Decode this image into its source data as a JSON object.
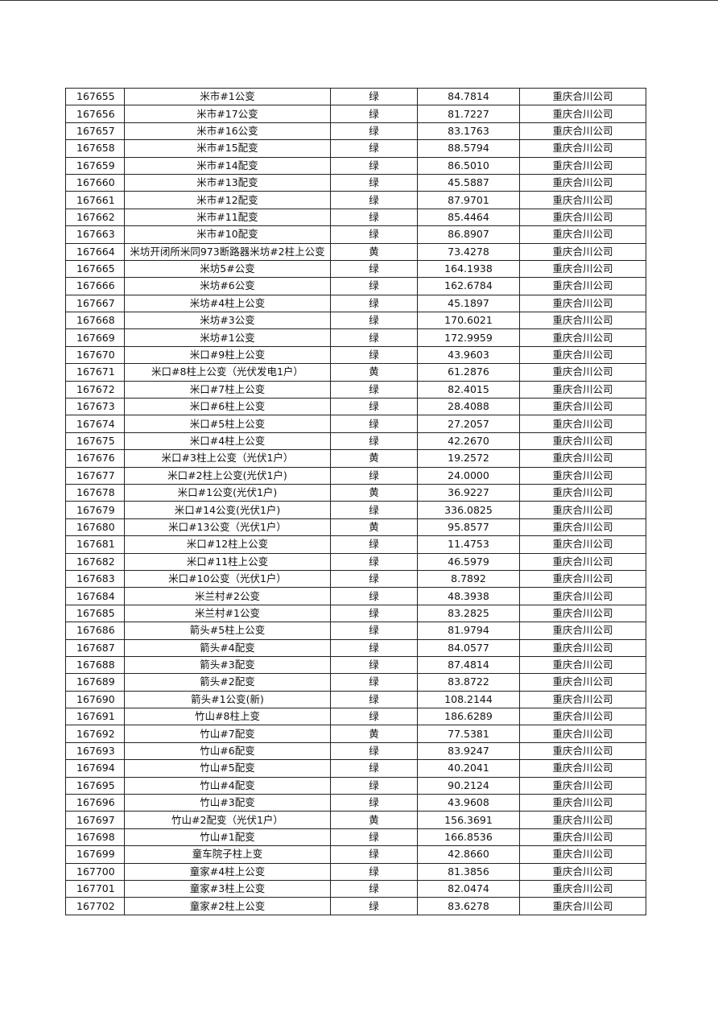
{
  "table": {
    "rows": [
      [
        "167655",
        "米市#1公变",
        "绿",
        "84.7814",
        "重庆合川公司"
      ],
      [
        "167656",
        "米市#17公变",
        "绿",
        "81.7227",
        "重庆合川公司"
      ],
      [
        "167657",
        "米市#16公变",
        "绿",
        "83.1763",
        "重庆合川公司"
      ],
      [
        "167658",
        "米市#15配变",
        "绿",
        "88.5794",
        "重庆合川公司"
      ],
      [
        "167659",
        "米市#14配变",
        "绿",
        "86.5010",
        "重庆合川公司"
      ],
      [
        "167660",
        "米市#13配变",
        "绿",
        "45.5887",
        "重庆合川公司"
      ],
      [
        "167661",
        "米市#12配变",
        "绿",
        "87.9701",
        "重庆合川公司"
      ],
      [
        "167662",
        "米市#11配变",
        "绿",
        "85.4464",
        "重庆合川公司"
      ],
      [
        "167663",
        "米市#10配变",
        "绿",
        "86.8907",
        "重庆合川公司"
      ],
      [
        "167664",
        "米坊开闭所米同973断路器米坊#2柱上公变",
        "黄",
        "73.4278",
        "重庆合川公司"
      ],
      [
        "167665",
        "米坊5#公变",
        "绿",
        "164.1938",
        "重庆合川公司"
      ],
      [
        "167666",
        "米坊#6公变",
        "绿",
        "162.6784",
        "重庆合川公司"
      ],
      [
        "167667",
        "米坊#4柱上公变",
        "绿",
        "45.1897",
        "重庆合川公司"
      ],
      [
        "167668",
        "米坊#3公变",
        "绿",
        "170.6021",
        "重庆合川公司"
      ],
      [
        "167669",
        "米坊#1公变",
        "绿",
        "172.9959",
        "重庆合川公司"
      ],
      [
        "167670",
        "米口#9柱上公变",
        "绿",
        "43.9603",
        "重庆合川公司"
      ],
      [
        "167671",
        "米口#8柱上公变（光伏发电1户）",
        "黄",
        "61.2876",
        "重庆合川公司"
      ],
      [
        "167672",
        "米口#7柱上公变",
        "绿",
        "82.4015",
        "重庆合川公司"
      ],
      [
        "167673",
        "米口#6柱上公变",
        "绿",
        "28.4088",
        "重庆合川公司"
      ],
      [
        "167674",
        "米口#5柱上公变",
        "绿",
        "27.2057",
        "重庆合川公司"
      ],
      [
        "167675",
        "米口#4柱上公变",
        "绿",
        "42.2670",
        "重庆合川公司"
      ],
      [
        "167676",
        "米口#3柱上公变（光伏1户）",
        "黄",
        "19.2572",
        "重庆合川公司"
      ],
      [
        "167677",
        "米口#2柱上公变(光伏1户)",
        "绿",
        "24.0000",
        "重庆合川公司"
      ],
      [
        "167678",
        "米口#1公变(光伏1户)",
        "黄",
        "36.9227",
        "重庆合川公司"
      ],
      [
        "167679",
        "米口#14公变(光伏1户)",
        "绿",
        "336.0825",
        "重庆合川公司"
      ],
      [
        "167680",
        "米口#13公变（光伏1户）",
        "黄",
        "95.8577",
        "重庆合川公司"
      ],
      [
        "167681",
        "米口#12柱上公变",
        "绿",
        "11.4753",
        "重庆合川公司"
      ],
      [
        "167682",
        "米口#11柱上公变",
        "绿",
        "46.5979",
        "重庆合川公司"
      ],
      [
        "167683",
        "米口#10公变（光伏1户）",
        "绿",
        "8.7892",
        "重庆合川公司"
      ],
      [
        "167684",
        "米兰村#2公变",
        "绿",
        "48.3938",
        "重庆合川公司"
      ],
      [
        "167685",
        "米兰村#1公变",
        "绿",
        "83.2825",
        "重庆合川公司"
      ],
      [
        "167686",
        "箭头#5柱上公变",
        "绿",
        "81.9794",
        "重庆合川公司"
      ],
      [
        "167687",
        "箭头#4配变",
        "绿",
        "84.0577",
        "重庆合川公司"
      ],
      [
        "167688",
        "箭头#3配变",
        "绿",
        "87.4814",
        "重庆合川公司"
      ],
      [
        "167689",
        "箭头#2配变",
        "绿",
        "83.8722",
        "重庆合川公司"
      ],
      [
        "167690",
        "箭头#1公变(新)",
        "绿",
        "108.2144",
        "重庆合川公司"
      ],
      [
        "167691",
        "竹山#8柱上变",
        "绿",
        "186.6289",
        "重庆合川公司"
      ],
      [
        "167692",
        "竹山#7配变",
        "黄",
        "77.5381",
        "重庆合川公司"
      ],
      [
        "167693",
        "竹山#6配变",
        "绿",
        "83.9247",
        "重庆合川公司"
      ],
      [
        "167694",
        "竹山#5配变",
        "绿",
        "40.2041",
        "重庆合川公司"
      ],
      [
        "167695",
        "竹山#4配变",
        "绿",
        "90.2124",
        "重庆合川公司"
      ],
      [
        "167696",
        "竹山#3配变",
        "绿",
        "43.9608",
        "重庆合川公司"
      ],
      [
        "167697",
        "竹山#2配变（光伏1户）",
        "黄",
        "156.3691",
        "重庆合川公司"
      ],
      [
        "167698",
        "竹山#1配变",
        "绿",
        "166.8536",
        "重庆合川公司"
      ],
      [
        "167699",
        "童车院子柱上变",
        "绿",
        "42.8660",
        "重庆合川公司"
      ],
      [
        "167700",
        "童家#4柱上公变",
        "绿",
        "81.3856",
        "重庆合川公司"
      ],
      [
        "167701",
        "童家#3柱上公变",
        "绿",
        "82.0474",
        "重庆合川公司"
      ],
      [
        "167702",
        "童家#2柱上公变",
        "绿",
        "83.6278",
        "重庆合川公司"
      ]
    ]
  }
}
